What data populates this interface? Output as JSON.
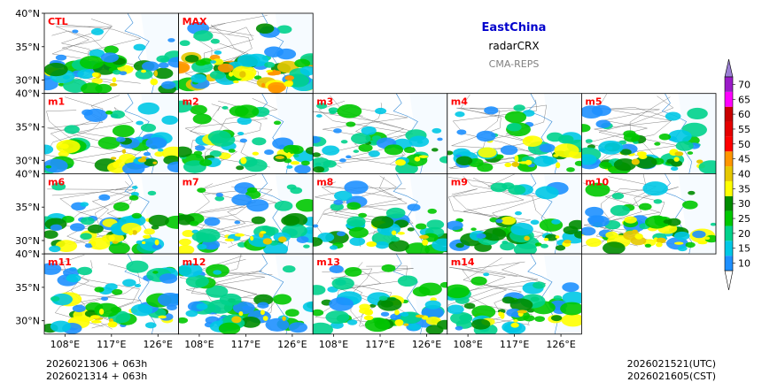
{
  "chart_data": {
    "type": "heatmap",
    "region_title": "EastChina",
    "variable": "radarCRX",
    "source": "CMA-REPS",
    "title_color": "#0000cc",
    "source_color": "#808080",
    "label_color": "#ff0000",
    "lon_ticks": [
      "108°E",
      "117°E",
      "126°E"
    ],
    "lat_ticks": [
      "40°N",
      "35°N",
      "30°N"
    ],
    "lon_range": [
      104,
      130
    ],
    "lat_range": [
      28,
      40
    ],
    "members": [
      {
        "name": "CTL",
        "row": 0,
        "col": 0,
        "intensity": 0.55
      },
      {
        "name": "MAX",
        "row": 0,
        "col": 1,
        "intensity": 1.0
      },
      {
        "name": "m1",
        "row": 1,
        "col": 0,
        "intensity": 0.55
      },
      {
        "name": "m2",
        "row": 1,
        "col": 1,
        "intensity": 0.45
      },
      {
        "name": "m3",
        "row": 1,
        "col": 2,
        "intensity": 0.35
      },
      {
        "name": "m4",
        "row": 1,
        "col": 3,
        "intensity": 0.5
      },
      {
        "name": "m5",
        "row": 1,
        "col": 4,
        "intensity": 0.6
      },
      {
        "name": "m6",
        "row": 2,
        "col": 0,
        "intensity": 0.6
      },
      {
        "name": "m7",
        "row": 2,
        "col": 1,
        "intensity": 0.55
      },
      {
        "name": "m8",
        "row": 2,
        "col": 2,
        "intensity": 0.45
      },
      {
        "name": "m9",
        "row": 2,
        "col": 3,
        "intensity": 0.45
      },
      {
        "name": "m10",
        "row": 2,
        "col": 4,
        "intensity": 0.7
      },
      {
        "name": "m11",
        "row": 3,
        "col": 0,
        "intensity": 0.6
      },
      {
        "name": "m12",
        "row": 3,
        "col": 1,
        "intensity": 0.45
      },
      {
        "name": "m13",
        "row": 3,
        "col": 2,
        "intensity": 0.55
      },
      {
        "name": "m14",
        "row": 3,
        "col": 3,
        "intensity": 0.5
      }
    ],
    "colorbar": {
      "levels": [
        10,
        15,
        20,
        25,
        30,
        35,
        40,
        45,
        50,
        55,
        60,
        65,
        70
      ],
      "labels": [
        "10",
        "15",
        "20",
        "25",
        "30",
        "35",
        "40",
        "45",
        "50",
        "55",
        "60",
        "65",
        "70"
      ],
      "colors": [
        "#1e90ff",
        "#00c8e6",
        "#00d28c",
        "#00c800",
        "#008c00",
        "#ffff00",
        "#e6c800",
        "#ff9600",
        "#ff0000",
        "#e60000",
        "#c80000",
        "#ff00ff",
        "#9b1bc8"
      ],
      "over_color": "#9b7fd4",
      "under_color": "#ffffff"
    },
    "init_time_utc": "2026021306  +  063h",
    "init_time_cst": "2026021314  +  063h",
    "valid_time_utc": "2026021521(UTC)",
    "valid_time_cst": "2026021605(CST)"
  }
}
